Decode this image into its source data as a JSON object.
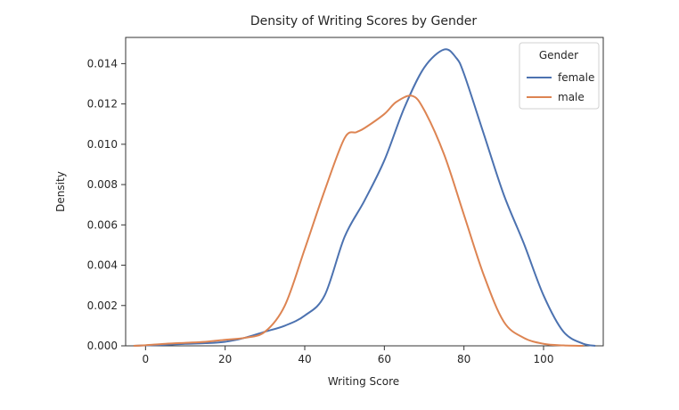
{
  "chart_data": {
    "type": "line",
    "title": "Density of Writing Scores by Gender",
    "xlabel": "Writing Score",
    "ylabel": "Density",
    "xlim": [
      -5,
      115
    ],
    "ylim": [
      0,
      0.0153
    ],
    "xticks": [
      0,
      20,
      40,
      60,
      80,
      100
    ],
    "yticks": [
      0.0,
      0.002,
      0.004,
      0.006,
      0.008,
      0.01,
      0.012,
      0.014
    ],
    "ytick_labels": [
      "0.000",
      "0.002",
      "0.004",
      "0.006",
      "0.008",
      "0.010",
      "0.012",
      "0.014"
    ],
    "grid": false,
    "legend": {
      "title": "Gender",
      "placement": "top-right"
    },
    "series": [
      {
        "name": "female",
        "color": "#4c72b0",
        "x": [
          -3,
          0,
          5,
          10,
          15,
          20,
          25,
          30,
          35,
          40,
          45,
          50,
          55,
          60,
          65,
          70,
          75,
          78,
          80,
          85,
          90,
          95,
          100,
          105,
          110,
          113
        ],
        "y": [
          0.0,
          2e-05,
          5e-05,
          0.0001,
          0.00013,
          0.0002,
          0.0004,
          0.0007,
          0.001,
          0.0015,
          0.0025,
          0.0054,
          0.0072,
          0.0092,
          0.0118,
          0.0138,
          0.0147,
          0.0143,
          0.0135,
          0.0105,
          0.0075,
          0.0051,
          0.0025,
          0.0007,
          0.0001,
          0.0
        ]
      },
      {
        "name": "male",
        "color": "#dd8452",
        "x": [
          -3,
          0,
          5,
          10,
          15,
          20,
          25,
          30,
          35,
          40,
          45,
          50,
          53,
          55,
          60,
          63,
          67,
          70,
          75,
          80,
          85,
          90,
          95,
          100,
          105,
          110
        ],
        "y": [
          0.0,
          3e-05,
          0.0001,
          0.00015,
          0.0002,
          0.0003,
          0.0004,
          0.0007,
          0.002,
          0.0048,
          0.0077,
          0.0103,
          0.0106,
          0.0108,
          0.0115,
          0.0121,
          0.0124,
          0.0117,
          0.0095,
          0.0065,
          0.0035,
          0.0012,
          0.0004,
          0.0001,
          2e-05,
          0.0
        ]
      }
    ]
  }
}
